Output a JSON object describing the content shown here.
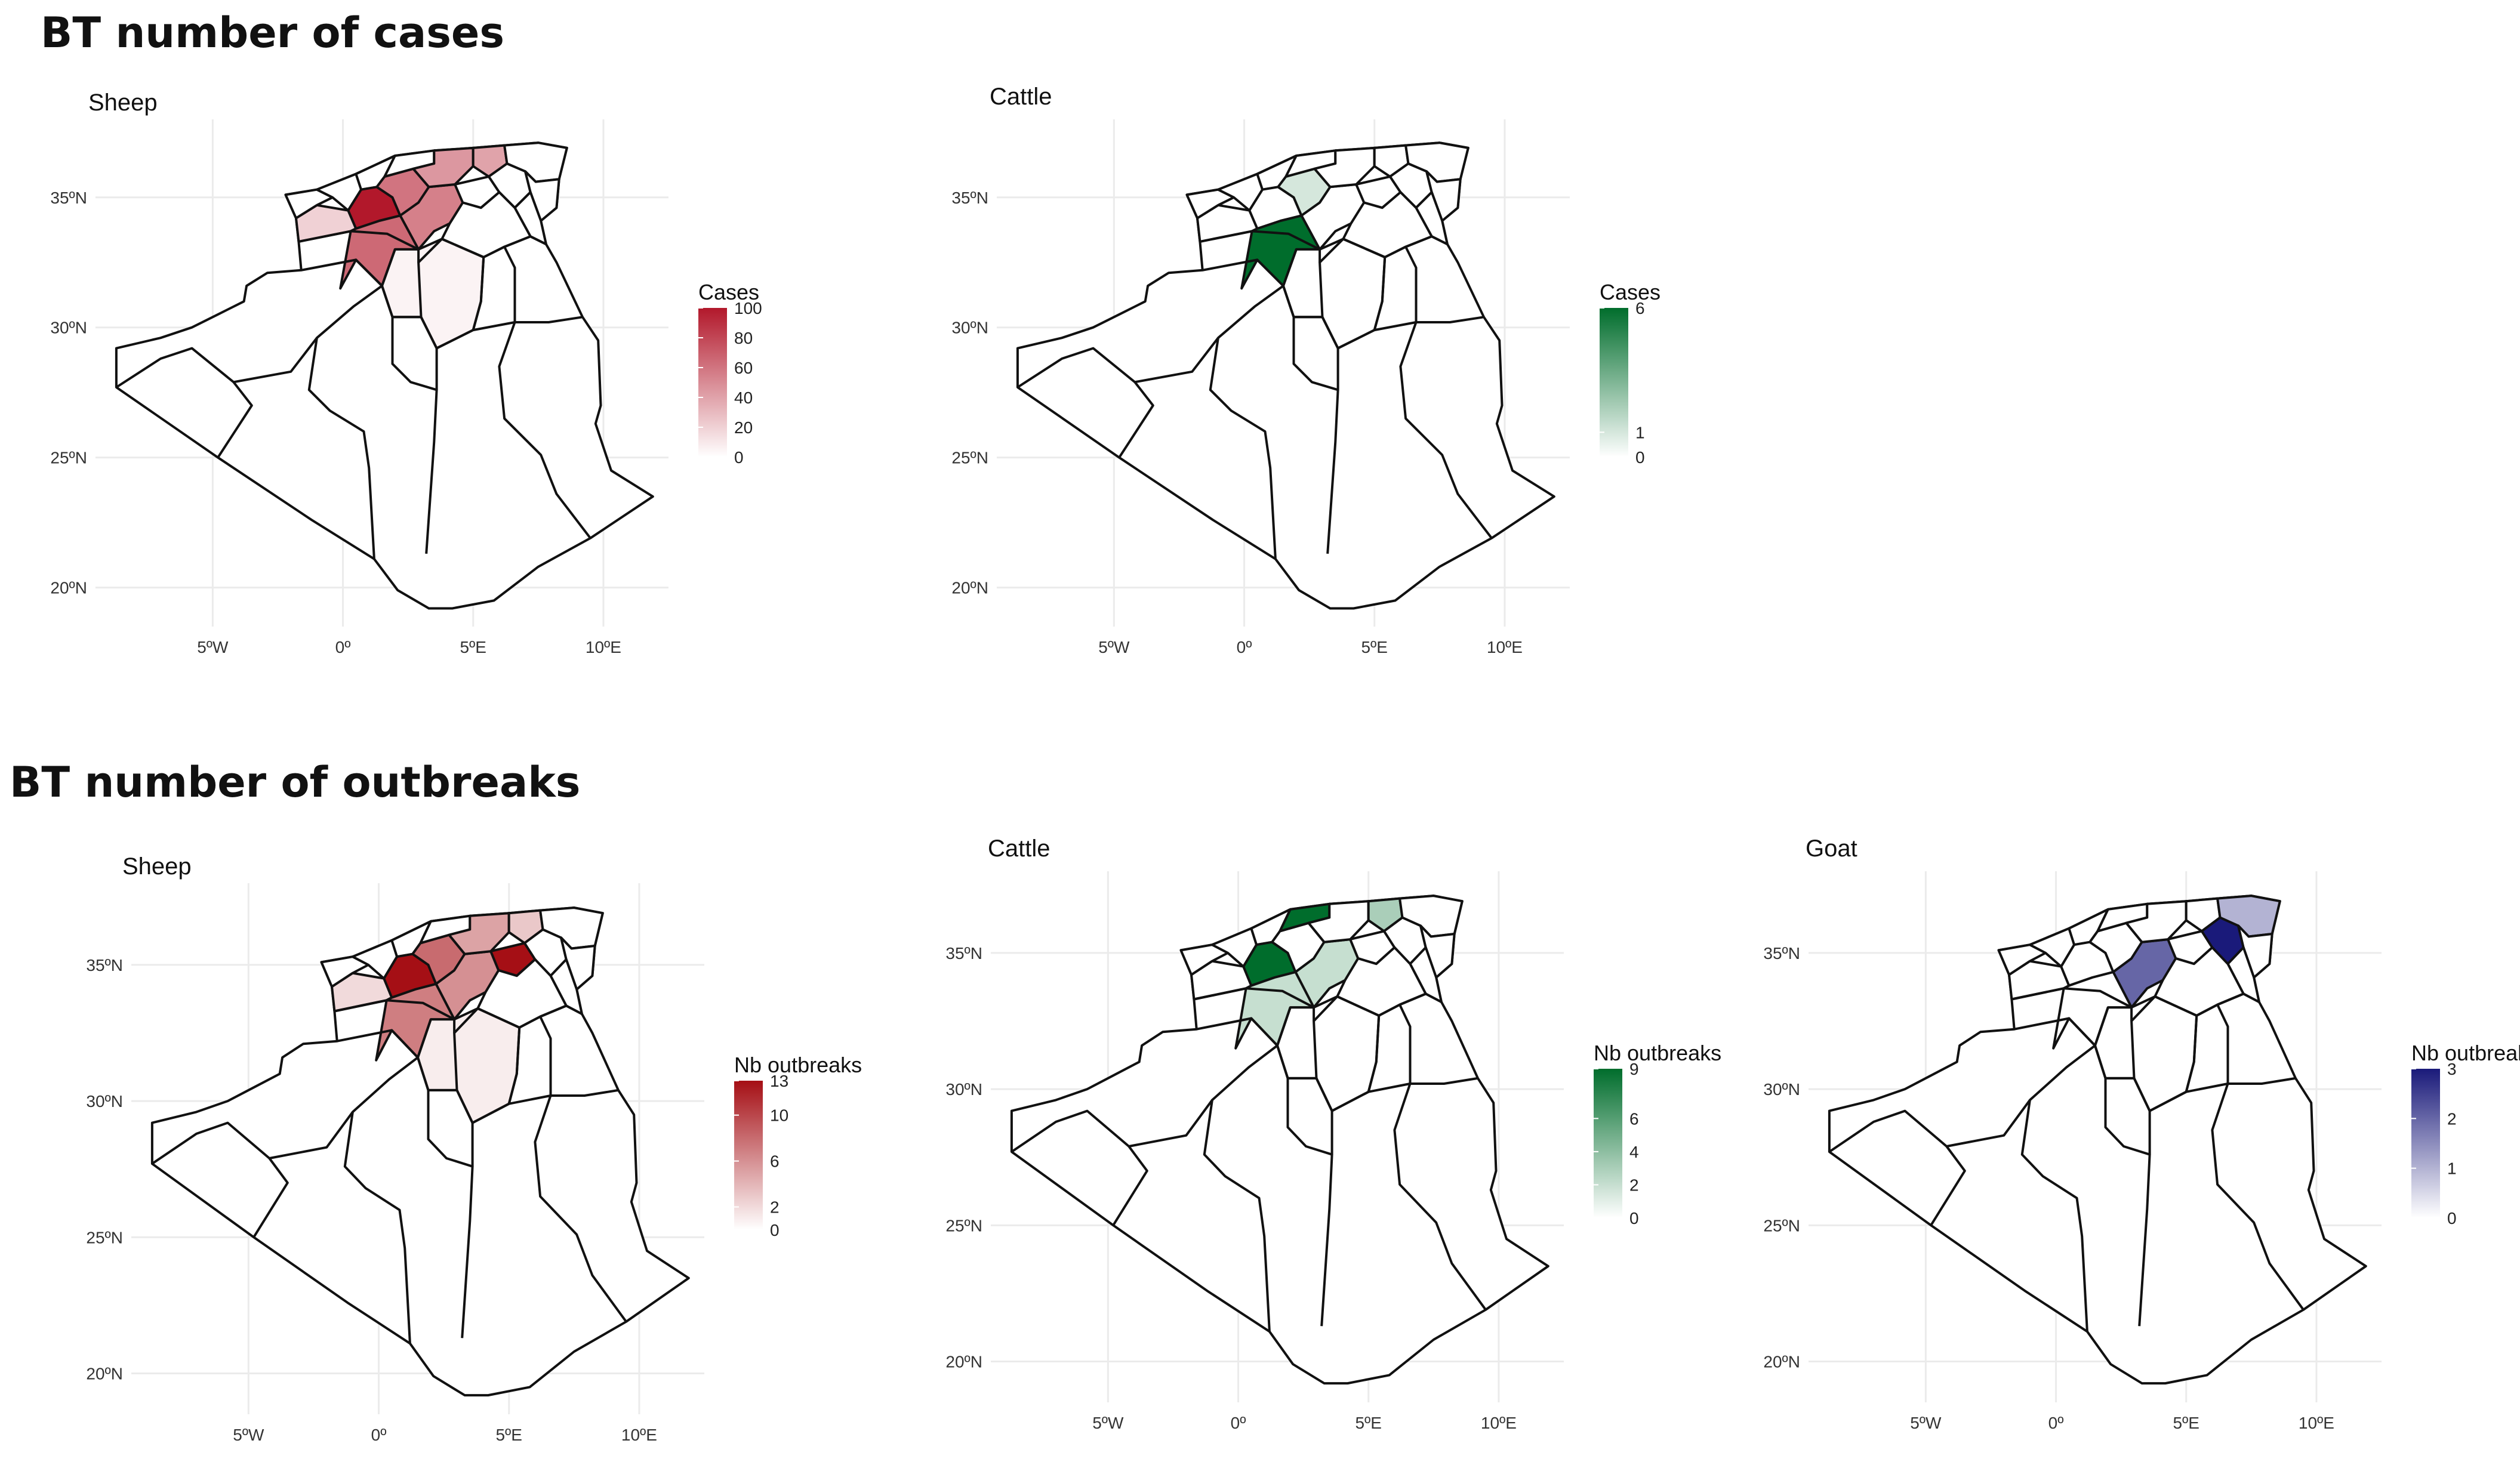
{
  "sections": [
    {
      "title": "BT number of cases"
    },
    {
      "title": "BT number of outbreaks"
    }
  ],
  "axes": {
    "lat_ticks": [
      "35ºN",
      "30ºN",
      "25ºN",
      "20ºN"
    ],
    "lon_ticks": [
      "5ºW",
      "0º",
      "5ºE",
      "10ºE"
    ],
    "lat_values": [
      35,
      30,
      25,
      20
    ],
    "lon_values": [
      -5,
      0,
      5,
      10
    ],
    "xlim": [
      -9.5,
      12.5
    ],
    "ylim": [
      18.5,
      38
    ]
  },
  "chart_data": [
    {
      "type": "choropleth",
      "section": "BT number of cases",
      "title": "Sheep",
      "legend": {
        "title": "Cases",
        "labels": [
          "100",
          "80",
          "60",
          "40",
          "20",
          "0"
        ],
        "range": [
          0,
          100
        ],
        "color_low": "#ffffff",
        "color_high": "#b2182b"
      },
      "regions_highlighted": [
        {
          "region": "north-central-1",
          "value": 100
        },
        {
          "region": "north-central-2",
          "value": 60
        },
        {
          "region": "north-central-3",
          "value": 55
        },
        {
          "region": "north-east-1",
          "value": 45
        },
        {
          "region": "north-east-2",
          "value": 40
        },
        {
          "region": "north-west-1",
          "value": 20
        },
        {
          "region": "el-bayadh",
          "value": 65
        },
        {
          "region": "ghardaia",
          "value": 5
        }
      ]
    },
    {
      "type": "choropleth",
      "section": "BT number of cases",
      "title": "Cattle",
      "legend": {
        "title": "Cases",
        "labels": [
          "6",
          "1",
          "0"
        ],
        "range": [
          0,
          6
        ],
        "color_low": "#ffffff",
        "color_high": "#006d2c"
      },
      "regions_highlighted": [
        {
          "region": "el-bayadh",
          "value": 6
        },
        {
          "region": "north-central-2",
          "value": 1
        }
      ]
    },
    {
      "type": "choropleth",
      "section": "BT number of outbreaks",
      "title": "Sheep",
      "legend": {
        "title": "Nb outbreaks",
        "labels": [
          "13",
          "10",
          "6",
          "2",
          "0"
        ],
        "range": [
          0,
          13
        ],
        "color_low": "#ffffff",
        "color_high": "#a50f15"
      },
      "regions_highlighted": [
        {
          "region": "north-central-1",
          "value": 13
        },
        {
          "region": "north-east-3",
          "value": 13
        },
        {
          "region": "north-central-2",
          "value": 8
        },
        {
          "region": "north-central-3",
          "value": 6
        },
        {
          "region": "north-east-1",
          "value": 5
        },
        {
          "region": "north-east-2",
          "value": 3
        },
        {
          "region": "north-west-1",
          "value": 2
        },
        {
          "region": "el-bayadh",
          "value": 7
        },
        {
          "region": "ghardaia",
          "value": 1
        }
      ]
    },
    {
      "type": "choropleth",
      "section": "BT number of outbreaks",
      "title": "Cattle",
      "legend": {
        "title": "Nb outbreaks",
        "labels": [
          "9",
          "6",
          "4",
          "2",
          "0"
        ],
        "range": [
          0,
          9
        ],
        "color_low": "#ffffff",
        "color_high": "#006d2c"
      },
      "regions_highlighted": [
        {
          "region": "north-central-1",
          "value": 9
        },
        {
          "region": "coast-central",
          "value": 9
        },
        {
          "region": "north-east-2",
          "value": 3
        },
        {
          "region": "north-central-3",
          "value": 2
        },
        {
          "region": "el-bayadh",
          "value": 2
        }
      ]
    },
    {
      "type": "choropleth",
      "section": "BT number of outbreaks",
      "title": "Goat",
      "legend": {
        "title": "Nb outbreaks",
        "labels": [
          "3",
          "2",
          "1",
          "0"
        ],
        "range": [
          0,
          3
        ],
        "color_low": "#ffffff",
        "color_high": "#1a1a7a"
      },
      "regions_highlighted": [
        {
          "region": "north-east-4",
          "value": 3
        },
        {
          "region": "north-central-3",
          "value": 2
        },
        {
          "region": "coast-east",
          "value": 1
        }
      ]
    }
  ]
}
